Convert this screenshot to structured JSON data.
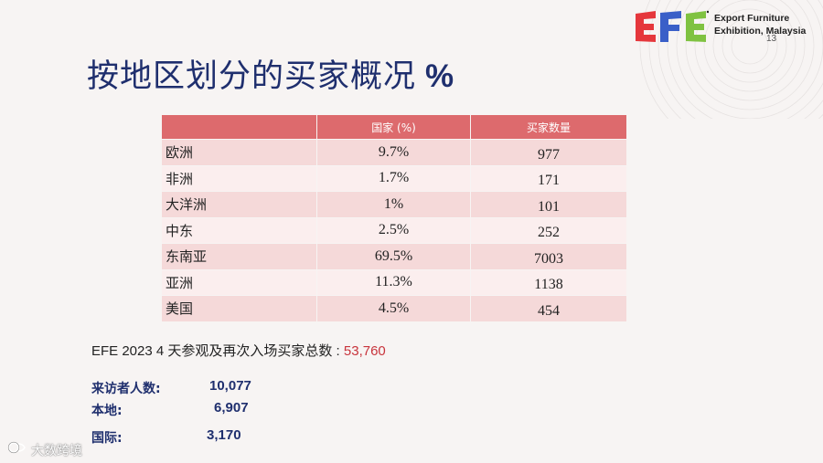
{
  "logo": {
    "letters": "EFE",
    "brand_line1": "Export Furniture",
    "brand_line2": "Exhibition, Malaysia",
    "colors": [
      "#e5373c",
      "#3a5fc8",
      "#7fc241"
    ]
  },
  "page_number": "13",
  "title": {
    "text": "按地区划分的买家概况",
    "suffix": "%"
  },
  "table": {
    "headers": [
      "",
      "国家 (%)",
      "买家数量"
    ],
    "rows": [
      {
        "region": "欧洲",
        "percent": "9.7%",
        "buyers": "977"
      },
      {
        "region": "非洲",
        "percent": "1.7%",
        "buyers": "171"
      },
      {
        "region": "大洋洲",
        "percent": "1%",
        "buyers": "101"
      },
      {
        "region": "中东",
        "percent": "2.5%",
        "buyers": "252"
      },
      {
        "region": "东南亚",
        "percent": "69.5%",
        "buyers": "7003"
      },
      {
        "region": "亚洲",
        "percent": "11.3%",
        "buyers": "1138"
      },
      {
        "region": "美国",
        "percent": "4.5%",
        "buyers": "454"
      }
    ]
  },
  "summary": {
    "label": "EFE 2023 4 天参观及再次入场买家总数 : ",
    "value": "53,760"
  },
  "stats": {
    "visitors_label": "来访者人数:",
    "visitors_value": "10,077",
    "local_label": "本地:",
    "local_value": "6,907",
    "international_label": "国际:",
    "international_value": "3,170"
  },
  "watermark": "大数跨境"
}
